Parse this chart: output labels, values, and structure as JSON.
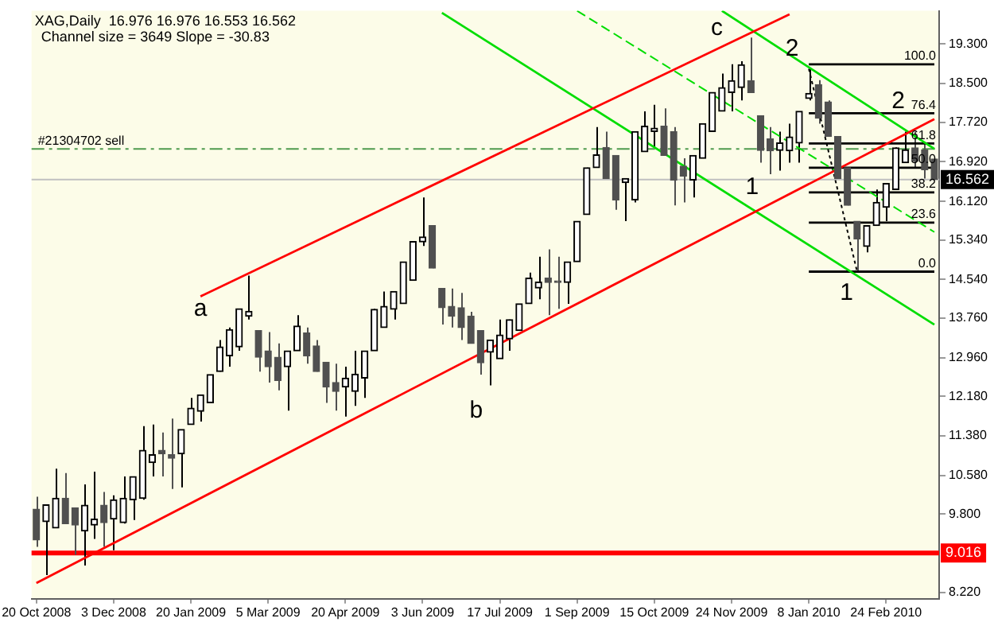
{
  "chart_data": {
    "type": "candlestick",
    "title": "XAG,Daily  16.976 16.976 16.553 16.562",
    "subtitle": "Channel size = 3649 Slope = -30.83",
    "colors": [
      "#505050",
      "#000000",
      "#000000",
      "#505050",
      "#505050",
      "#000000",
      "#000000",
      "#505050",
      "#000000",
      "#000000",
      "#000000",
      "#000000",
      "#000000",
      "#505050",
      "#505050",
      "#000000",
      "#000000",
      "#000000",
      "#000000",
      "#000000",
      "#000000",
      "#000000",
      "#000000",
      "#505050",
      "#505050",
      "#505050",
      "#000000",
      "#000000",
      "#505050",
      "#505050",
      "#505050",
      "#505050",
      "#000000",
      "#000000",
      "#000000",
      "#000000",
      "#000000",
      "#000000",
      "#000000",
      "#000000",
      "#000000",
      "#505050",
      "#505050",
      "#505050",
      "#505050",
      "#505050",
      "#505050",
      "#000000",
      "#000000",
      "#000000",
      "#000000",
      "#000000",
      "#000000",
      "#505050",
      "#505050",
      "#000000",
      "#000000",
      "#000000",
      "#000000",
      "#505050",
      "#505050",
      "#000000",
      "#000000",
      "#000000",
      "#000000",
      "#505050",
      "#505050",
      "#505050",
      "#000000",
      "#000000",
      "#000000",
      "#000000",
      "#000000",
      "#000000",
      "#505050",
      "#505050",
      "#505050",
      "#000000",
      "#000000",
      "#000000",
      "#000000",
      "#505050",
      "#505050",
      "#505050",
      "#505050",
      "#505050",
      "#000000",
      "#000000",
      "#000000",
      "#000000",
      "#000000",
      "#505050",
      "#505050",
      "#505050"
    ],
    "categories": [
      "20 Oct 2008",
      null,
      null,
      null,
      null,
      null,
      null,
      null,
      "3 Dec 2008",
      null,
      null,
      null,
      null,
      null,
      null,
      null,
      "20 Jan 2009",
      null,
      null,
      null,
      null,
      null,
      null,
      null,
      "5 Mar 2009",
      null,
      null,
      null,
      null,
      null,
      null,
      null,
      "20 Apr 2009",
      null,
      null,
      null,
      null,
      null,
      null,
      null,
      "3 Jun 2009",
      null,
      null,
      null,
      null,
      null,
      null,
      null,
      "17 Jul 2009",
      null,
      null,
      null,
      null,
      null,
      null,
      null,
      "1 Sep 2009",
      null,
      null,
      null,
      null,
      null,
      null,
      null,
      "15 Oct 2009",
      null,
      null,
      null,
      null,
      null,
      null,
      null,
      "24 Nov 2009",
      null,
      null,
      null,
      null,
      null,
      null,
      null,
      "8 Jan 2010",
      null,
      null,
      null,
      null,
      null,
      null,
      null,
      "24 Feb 2010",
      null,
      null,
      null,
      null,
      null
    ],
    "ohlc": [
      [
        9.9,
        10.15,
        9.14,
        9.28
      ],
      [
        9.65,
        9.99,
        8.57,
        9.99
      ],
      [
        9.52,
        10.72,
        9.52,
        10.12
      ],
      [
        10.12,
        10.63,
        9.61,
        9.61
      ],
      [
        9.93,
        9.93,
        8.98,
        9.58
      ],
      [
        9.46,
        10.4,
        8.76,
        9.98
      ],
      [
        9.58,
        10.66,
        9.3,
        9.7
      ],
      [
        9.98,
        10.25,
        9.14,
        9.63
      ],
      [
        9.7,
        10.18,
        9.07,
        10.09
      ],
      [
        9.63,
        10.56,
        9.61,
        10.12
      ],
      [
        10.09,
        10.56,
        9.68,
        10.56
      ],
      [
        10.12,
        11.58,
        10.09,
        11.09
      ],
      [
        10.84,
        11.61,
        10.56,
        11.0
      ],
      [
        11.09,
        11.45,
        10.56,
        11.02
      ],
      [
        11.0,
        11.73,
        10.31,
        10.93
      ],
      [
        11.02,
        11.51,
        10.34,
        11.51
      ],
      [
        11.61,
        12.15,
        11.61,
        11.94
      ],
      [
        11.88,
        12.21,
        11.67,
        12.21
      ],
      [
        12.05,
        12.62,
        12.05,
        12.62
      ],
      [
        12.68,
        13.32,
        12.68,
        13.18
      ],
      [
        13.0,
        13.57,
        12.78,
        13.53
      ],
      [
        13.18,
        13.95,
        13.1,
        13.95
      ],
      [
        13.8,
        14.62,
        13.73,
        13.9
      ],
      [
        13.51,
        13.51,
        12.68,
        12.97
      ],
      [
        13.1,
        13.48,
        12.46,
        12.78
      ],
      [
        12.97,
        13.25,
        12.3,
        12.5
      ],
      [
        12.78,
        13.1,
        11.89,
        13.1
      ],
      [
        13.1,
        13.82,
        13.1,
        13.6
      ],
      [
        13.46,
        13.57,
        12.84,
        13.0
      ],
      [
        13.2,
        13.32,
        12.68,
        12.68
      ],
      [
        12.87,
        12.87,
        12.05,
        12.37
      ],
      [
        12.46,
        12.84,
        11.89,
        12.28
      ],
      [
        12.37,
        12.78,
        11.77,
        12.55
      ],
      [
        12.28,
        13.1,
        11.99,
        12.63
      ],
      [
        12.55,
        13.1,
        12.15,
        13.1
      ],
      [
        13.1,
        13.95,
        13.1,
        13.94
      ],
      [
        13.57,
        14.3,
        13.57,
        14.0
      ],
      [
        13.94,
        14.3,
        13.73,
        14.3
      ],
      [
        14.05,
        14.9,
        14.05,
        14.9
      ],
      [
        14.52,
        15.31,
        14.52,
        15.31
      ],
      [
        15.3,
        16.2,
        15.22,
        15.4
      ],
      [
        15.63,
        15.63,
        14.77,
        14.77
      ],
      [
        14.36,
        14.36,
        13.63,
        13.97
      ],
      [
        14.0,
        14.36,
        13.57,
        13.8
      ],
      [
        13.97,
        14.27,
        13.32,
        13.57
      ],
      [
        13.8,
        13.89,
        13.25,
        13.25
      ],
      [
        13.51,
        13.51,
        12.62,
        12.86
      ],
      [
        13.07,
        13.32,
        12.4,
        13.32
      ],
      [
        12.94,
        13.73,
        12.94,
        13.42
      ],
      [
        13.34,
        13.73,
        13.1,
        13.73
      ],
      [
        13.51,
        14.05,
        13.51,
        14.05
      ],
      [
        14.05,
        14.68,
        14.05,
        14.57
      ],
      [
        14.37,
        15.0,
        14.14,
        14.49
      ],
      [
        14.57,
        15.15,
        13.82,
        14.48
      ],
      [
        14.49,
        15.0,
        13.95,
        14.48
      ],
      [
        14.48,
        14.9,
        14.05,
        14.9
      ],
      [
        14.9,
        15.72,
        14.9,
        15.72
      ],
      [
        15.85,
        16.8,
        15.85,
        16.8
      ],
      [
        16.8,
        17.62,
        16.8,
        17.06
      ],
      [
        17.21,
        17.53,
        16.58,
        16.58
      ],
      [
        17.05,
        17.05,
        15.95,
        16.15
      ],
      [
        16.5,
        16.58,
        15.72,
        16.58
      ],
      [
        16.15,
        17.53,
        16.1,
        17.53
      ],
      [
        17.12,
        17.94,
        17.12,
        17.64
      ],
      [
        17.53,
        18.07,
        17.21,
        17.6
      ],
      [
        17.64,
        18.0,
        17.05,
        17.05
      ],
      [
        17.53,
        17.62,
        16.04,
        16.55
      ],
      [
        16.83,
        16.99,
        16.1,
        16.63
      ],
      [
        16.55,
        17.05,
        16.2,
        17.05
      ],
      [
        16.99,
        17.69,
        16.99,
        17.69
      ],
      [
        17.53,
        18.32,
        17.53,
        18.32
      ],
      [
        17.94,
        18.7,
        17.94,
        18.42
      ],
      [
        18.32,
        18.89,
        17.94,
        18.56
      ],
      [
        18.42,
        18.95,
        18.16,
        18.88
      ],
      [
        18.56,
        19.43,
        18.32,
        18.32
      ],
      [
        17.85,
        17.85,
        16.9,
        17.15
      ],
      [
        17.38,
        17.62,
        16.67,
        17.14
      ],
      [
        17.15,
        17.53,
        16.74,
        17.3
      ],
      [
        17.14,
        17.69,
        16.9,
        17.42
      ],
      [
        17.3,
        17.94,
        16.9,
        17.94
      ],
      [
        18.2,
        18.8,
        18.16,
        18.3
      ],
      [
        18.48,
        18.57,
        17.69,
        17.8
      ],
      [
        18.13,
        18.16,
        17.43,
        17.43
      ],
      [
        17.43,
        17.43,
        16.58,
        16.58
      ],
      [
        16.8,
        16.8,
        16.04,
        16.04
      ],
      [
        15.72,
        15.72,
        14.7,
        15.36
      ],
      [
        15.21,
        15.63,
        15.09,
        15.63
      ],
      [
        15.63,
        16.36,
        15.63,
        16.1
      ],
      [
        16.0,
        16.48,
        15.72,
        16.48
      ],
      [
        16.36,
        17.21,
        16.36,
        17.2
      ],
      [
        16.9,
        17.53,
        16.9,
        17.16
      ],
      [
        17.2,
        17.53,
        16.8,
        16.93
      ],
      [
        17.16,
        17.28,
        16.58,
        16.76
      ],
      [
        16.976,
        16.976,
        16.553,
        16.562
      ]
    ],
    "series": [
      {
        "type": "line",
        "color": "#ff0000",
        "values": [
          null,
          null,
          null,
          null,
          null,
          null,
          null,
          null,
          null,
          null,
          null,
          null,
          null,
          null,
          null,
          null,
          null,
          14.2,
          null,
          null,
          null,
          null,
          null,
          null,
          null,
          null,
          null,
          null,
          null,
          null,
          null,
          null,
          null,
          null,
          null,
          null,
          null,
          null,
          null,
          null,
          null,
          null,
          null,
          null,
          null,
          null,
          null,
          null,
          null,
          null,
          null,
          null,
          null,
          null,
          null,
          null,
          null,
          null,
          null,
          null,
          null,
          null,
          null,
          null,
          null,
          null,
          null,
          null,
          null,
          null,
          null,
          null,
          null,
          null,
          null,
          null,
          null,
          null,
          19.9,
          null,
          null,
          null,
          null,
          null,
          null,
          null,
          null,
          null,
          null,
          null,
          null,
          null,
          null,
          null
        ]
      },
      {
        "type": "line",
        "color": "#ff0000",
        "values": [
          8.41,
          null,
          null,
          null,
          null,
          null,
          null,
          null,
          null,
          null,
          null,
          null,
          null,
          null,
          null,
          null,
          null,
          null,
          null,
          null,
          null,
          null,
          null,
          null,
          null,
          null,
          null,
          null,
          null,
          null,
          null,
          null,
          null,
          null,
          null,
          null,
          null,
          null,
          null,
          null,
          null,
          null,
          null,
          null,
          null,
          null,
          null,
          null,
          null,
          null,
          null,
          null,
          null,
          null,
          null,
          null,
          null,
          null,
          null,
          null,
          null,
          null,
          null,
          null,
          null,
          null,
          null,
          null,
          null,
          null,
          null,
          null,
          null,
          null,
          null,
          null,
          null,
          null,
          null,
          null,
          null,
          null,
          null,
          null,
          null,
          null,
          null,
          null,
          null,
          null,
          null,
          null,
          null,
          17.78
        ]
      },
      {
        "type": "line",
        "color": "#00dd00",
        "values": [
          null,
          null,
          null,
          null,
          null,
          null,
          null,
          null,
          null,
          null,
          null,
          null,
          null,
          null,
          null,
          null,
          null,
          null,
          null,
          null,
          null,
          null,
          null,
          null,
          null,
          null,
          null,
          null,
          null,
          null,
          null,
          null,
          null,
          null,
          null,
          null,
          null,
          null,
          null,
          null,
          null,
          null,
          19.93,
          null,
          null,
          null,
          null,
          null,
          null,
          null,
          null,
          null,
          null,
          null,
          null,
          null,
          null,
          null,
          null,
          null,
          null,
          null,
          null,
          null,
          null,
          null,
          null,
          null,
          null,
          null,
          null,
          null,
          null,
          null,
          null,
          null,
          null,
          null,
          null,
          null,
          null,
          null,
          null,
          null,
          null,
          null,
          null,
          null,
          null,
          null,
          null,
          null,
          null,
          13.63
        ]
      },
      {
        "type": "line",
        "color": "#00dd00",
        "values": [
          null,
          null,
          null,
          null,
          null,
          null,
          null,
          null,
          null,
          null,
          null,
          null,
          null,
          null,
          null,
          null,
          null,
          null,
          null,
          null,
          null,
          null,
          null,
          null,
          null,
          null,
          null,
          null,
          null,
          null,
          null,
          null,
          null,
          null,
          null,
          null,
          null,
          null,
          null,
          null,
          null,
          null,
          null,
          null,
          null,
          null,
          null,
          null,
          null,
          null,
          null,
          null,
          null,
          null,
          null,
          null,
          null,
          null,
          null,
          null,
          null,
          null,
          null,
          null,
          null,
          null,
          null,
          null,
          null,
          null,
          null,
          19.97,
          null,
          null,
          null,
          null,
          null,
          null,
          null,
          null,
          null,
          null,
          null,
          null,
          null,
          null,
          null,
          null,
          null,
          null,
          null,
          null,
          null,
          17.18
        ]
      },
      {
        "type": "line",
        "color": "#00dd00",
        "line_style": "dashed",
        "values": [
          null,
          null,
          null,
          null,
          null,
          null,
          null,
          null,
          null,
          null,
          null,
          null,
          null,
          null,
          null,
          null,
          null,
          null,
          null,
          null,
          null,
          null,
          null,
          null,
          null,
          null,
          null,
          null,
          null,
          null,
          null,
          null,
          null,
          null,
          null,
          null,
          null,
          null,
          null,
          null,
          null,
          null,
          null,
          null,
          null,
          null,
          null,
          null,
          null,
          null,
          null,
          null,
          null,
          null,
          null,
          null,
          19.97,
          null,
          null,
          null,
          null,
          null,
          null,
          null,
          null,
          null,
          null,
          null,
          null,
          null,
          null,
          null,
          null,
          null,
          null,
          null,
          null,
          null,
          null,
          null,
          null,
          null,
          null,
          null,
          null,
          null,
          null,
          null,
          null,
          null,
          null,
          null,
          null,
          15.5
        ]
      },
      {
        "type": "line",
        "color": "#000000",
        "line_style": "dotted",
        "values": [
          null,
          null,
          null,
          null,
          null,
          null,
          null,
          null,
          null,
          null,
          null,
          null,
          null,
          null,
          null,
          null,
          null,
          null,
          null,
          null,
          null,
          null,
          null,
          null,
          null,
          null,
          null,
          null,
          null,
          null,
          null,
          null,
          null,
          null,
          null,
          null,
          null,
          null,
          null,
          null,
          null,
          null,
          null,
          null,
          null,
          null,
          null,
          null,
          null,
          null,
          null,
          null,
          null,
          null,
          null,
          null,
          null,
          null,
          null,
          null,
          null,
          null,
          null,
          null,
          null,
          null,
          null,
          null,
          null,
          null,
          null,
          null,
          null,
          null,
          null,
          null,
          null,
          null,
          null,
          null,
          18.8,
          null,
          null,
          null,
          null,
          14.7,
          null,
          null,
          null,
          null,
          null,
          null,
          null,
          null
        ]
      },
      {
        "type": "line",
        "name": "100.0",
        "color": "#000000",
        "values": [
          null,
          null,
          null,
          null,
          null,
          null,
          null,
          null,
          null,
          null,
          null,
          null,
          null,
          null,
          null,
          null,
          null,
          null,
          null,
          null,
          null,
          null,
          null,
          null,
          null,
          null,
          null,
          null,
          null,
          null,
          null,
          null,
          null,
          null,
          null,
          null,
          null,
          null,
          null,
          null,
          null,
          null,
          null,
          null,
          null,
          null,
          null,
          null,
          null,
          null,
          null,
          null,
          null,
          null,
          null,
          null,
          null,
          null,
          null,
          null,
          null,
          null,
          null,
          null,
          null,
          null,
          null,
          null,
          null,
          null,
          null,
          null,
          null,
          null,
          null,
          null,
          null,
          null,
          null,
          null,
          18.89,
          null,
          null,
          null,
          null,
          null,
          null,
          null,
          null,
          null,
          null,
          null,
          null,
          18.89
        ]
      },
      {
        "type": "line",
        "name": "76.4",
        "color": "#000000",
        "values": [
          null,
          null,
          null,
          null,
          null,
          null,
          null,
          null,
          null,
          null,
          null,
          null,
          null,
          null,
          null,
          null,
          null,
          null,
          null,
          null,
          null,
          null,
          null,
          null,
          null,
          null,
          null,
          null,
          null,
          null,
          null,
          null,
          null,
          null,
          null,
          null,
          null,
          null,
          null,
          null,
          null,
          null,
          null,
          null,
          null,
          null,
          null,
          null,
          null,
          null,
          null,
          null,
          null,
          null,
          null,
          null,
          null,
          null,
          null,
          null,
          null,
          null,
          null,
          null,
          null,
          null,
          null,
          null,
          null,
          null,
          null,
          null,
          null,
          null,
          null,
          null,
          null,
          null,
          null,
          null,
          17.9,
          null,
          null,
          null,
          null,
          null,
          null,
          null,
          null,
          null,
          null,
          null,
          null,
          17.9
        ]
      },
      {
        "type": "line",
        "name": "61.8",
        "color": "#000000",
        "values": [
          null,
          null,
          null,
          null,
          null,
          null,
          null,
          null,
          null,
          null,
          null,
          null,
          null,
          null,
          null,
          null,
          null,
          null,
          null,
          null,
          null,
          null,
          null,
          null,
          null,
          null,
          null,
          null,
          null,
          null,
          null,
          null,
          null,
          null,
          null,
          null,
          null,
          null,
          null,
          null,
          null,
          null,
          null,
          null,
          null,
          null,
          null,
          null,
          null,
          null,
          null,
          null,
          null,
          null,
          null,
          null,
          null,
          null,
          null,
          null,
          null,
          null,
          null,
          null,
          null,
          null,
          null,
          null,
          null,
          null,
          null,
          null,
          null,
          null,
          null,
          null,
          null,
          null,
          null,
          null,
          17.29,
          null,
          null,
          null,
          null,
          null,
          null,
          null,
          null,
          null,
          null,
          null,
          null,
          17.29
        ]
      },
      {
        "type": "line",
        "name": "50.0",
        "color": "#000000",
        "values": [
          null,
          null,
          null,
          null,
          null,
          null,
          null,
          null,
          null,
          null,
          null,
          null,
          null,
          null,
          null,
          null,
          null,
          null,
          null,
          null,
          null,
          null,
          null,
          null,
          null,
          null,
          null,
          null,
          null,
          null,
          null,
          null,
          null,
          null,
          null,
          null,
          null,
          null,
          null,
          null,
          null,
          null,
          null,
          null,
          null,
          null,
          null,
          null,
          null,
          null,
          null,
          null,
          null,
          null,
          null,
          null,
          null,
          null,
          null,
          null,
          null,
          null,
          null,
          null,
          null,
          null,
          null,
          null,
          null,
          null,
          null,
          null,
          null,
          null,
          null,
          null,
          null,
          null,
          null,
          null,
          16.8,
          null,
          null,
          null,
          null,
          null,
          null,
          null,
          null,
          null,
          null,
          null,
          null,
          16.8
        ]
      },
      {
        "type": "line",
        "name": "38.2",
        "color": "#000000",
        "values": [
          null,
          null,
          null,
          null,
          null,
          null,
          null,
          null,
          null,
          null,
          null,
          null,
          null,
          null,
          null,
          null,
          null,
          null,
          null,
          null,
          null,
          null,
          null,
          null,
          null,
          null,
          null,
          null,
          null,
          null,
          null,
          null,
          null,
          null,
          null,
          null,
          null,
          null,
          null,
          null,
          null,
          null,
          null,
          null,
          null,
          null,
          null,
          null,
          null,
          null,
          null,
          null,
          null,
          null,
          null,
          null,
          null,
          null,
          null,
          null,
          null,
          null,
          null,
          null,
          null,
          null,
          null,
          null,
          null,
          null,
          null,
          null,
          null,
          null,
          null,
          null,
          null,
          null,
          null,
          null,
          16.3,
          null,
          null,
          null,
          null,
          null,
          null,
          null,
          null,
          null,
          null,
          null,
          null,
          16.3
        ]
      },
      {
        "type": "line",
        "name": "23.6",
        "color": "#000000",
        "values": [
          null,
          null,
          null,
          null,
          null,
          null,
          null,
          null,
          null,
          null,
          null,
          null,
          null,
          null,
          null,
          null,
          null,
          null,
          null,
          null,
          null,
          null,
          null,
          null,
          null,
          null,
          null,
          null,
          null,
          null,
          null,
          null,
          null,
          null,
          null,
          null,
          null,
          null,
          null,
          null,
          null,
          null,
          null,
          null,
          null,
          null,
          null,
          null,
          null,
          null,
          null,
          null,
          null,
          null,
          null,
          null,
          null,
          null,
          null,
          null,
          null,
          null,
          null,
          null,
          null,
          null,
          null,
          null,
          null,
          null,
          null,
          null,
          null,
          null,
          null,
          null,
          null,
          null,
          null,
          null,
          15.69,
          null,
          null,
          null,
          null,
          null,
          null,
          null,
          null,
          null,
          null,
          null,
          null,
          15.69
        ]
      },
      {
        "type": "line",
        "name": "0.0",
        "color": "#000000",
        "values": [
          null,
          null,
          null,
          null,
          null,
          null,
          null,
          null,
          null,
          null,
          null,
          null,
          null,
          null,
          null,
          null,
          null,
          null,
          null,
          null,
          null,
          null,
          null,
          null,
          null,
          null,
          null,
          null,
          null,
          null,
          null,
          null,
          null,
          null,
          null,
          null,
          null,
          null,
          null,
          null,
          null,
          null,
          null,
          null,
          null,
          null,
          null,
          null,
          null,
          null,
          null,
          null,
          null,
          null,
          null,
          null,
          null,
          null,
          null,
          null,
          null,
          null,
          null,
          null,
          null,
          null,
          null,
          null,
          null,
          null,
          null,
          null,
          null,
          null,
          null,
          null,
          null,
          null,
          null,
          null,
          14.7,
          null,
          null,
          null,
          null,
          null,
          null,
          null,
          null,
          null,
          null,
          null,
          null,
          14.7
        ]
      }
    ],
    "ref_lines": [
      {
        "axis": "y",
        "value": 9.016,
        "label": "9.016",
        "color": "#ff0000"
      },
      {
        "axis": "y",
        "value": 16.562,
        "label": "16.562",
        "color": "#c0c0c0"
      },
      {
        "axis": "y",
        "value": 17.18,
        "color": "#4e9a4e",
        "line_style": "dashed"
      }
    ],
    "annotations": [
      {
        "text": "#21304702 sell",
        "y": 17.18
      },
      "a",
      "b",
      "c",
      "2",
      "1",
      "1",
      "2"
    ],
    "ylim": [
      8.09,
      19.97
    ],
    "yticks": [
      {
        "value": 19.3,
        "label": "19.300"
      },
      {
        "value": 18.5,
        "label": "18.500"
      },
      {
        "value": 17.72,
        "label": "17.720"
      },
      {
        "value": 16.92,
        "label": "16.920"
      },
      {
        "value": 16.12,
        "label": "16.120"
      },
      {
        "value": 15.34,
        "label": "15.340"
      },
      {
        "value": 14.54,
        "label": "14.540"
      },
      {
        "value": 13.76,
        "label": "13.760"
      },
      {
        "value": 12.96,
        "label": "12.960"
      },
      {
        "value": 12.18,
        "label": "12.180"
      },
      {
        "value": 11.38,
        "label": "11.380"
      },
      {
        "value": 10.58,
        "label": "10.580"
      },
      {
        "value": 9.8,
        "label": "9.800"
      },
      {
        "value": 8.22,
        "label": "8.220"
      }
    ]
  }
}
